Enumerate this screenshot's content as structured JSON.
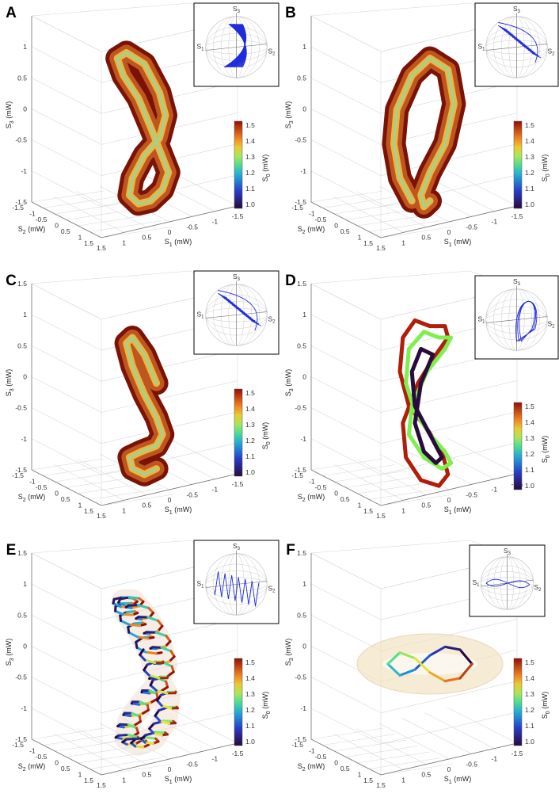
{
  "chart_data": [
    {
      "panel": "A",
      "type": "line",
      "render": "tube",
      "xlabel": "S",
      "xlabel_sub": "1",
      "xlabel_unit": " (mW)",
      "ylabel": "S",
      "ylabel_sub": "2",
      "ylabel_unit": " (mW)",
      "zlabel": "S",
      "zlabel_sub": "3",
      "zlabel_unit": " (mW)",
      "x_ticks": [
        "1.5",
        "1",
        "0.5",
        "0",
        "-0.5",
        "-1",
        "-1.5"
      ],
      "y_ticks": [
        "-1.5",
        "-1",
        "-0.5",
        "0",
        "0.5",
        "1",
        "1.5"
      ],
      "z_ticks": [
        "1.5",
        "1",
        "0.5",
        "0",
        "-0.5",
        "-1",
        "-1.5"
      ],
      "z_visible_ticks": [
        "1",
        "0.5",
        "0",
        "-0.5",
        "-1",
        "-1.5"
      ],
      "colorbar": {
        "label": "S",
        "label_sub": "0",
        "label_unit": " (mW)",
        "ticks": [
          "1.5",
          "1.4",
          "1.3",
          "1.2",
          "1.1",
          "1.0"
        ]
      },
      "inset": {
        "labels": [
          "S",
          "S",
          "S"
        ],
        "subs": [
          "3",
          "1",
          "2"
        ],
        "pattern": "band"
      },
      "series": [
        {
          "x": [
            0,
            0.4,
            0.9,
            1.1,
            0.8,
            0.2,
            -0.3,
            -0.5,
            -0.3,
            0.2,
            0.6,
            0.7,
            0.4,
            0.0,
            -0.4,
            -0.6,
            -0.3,
            0
          ],
          "y": [
            0,
            0,
            0,
            0,
            0,
            0,
            0,
            0,
            0,
            0,
            0,
            0,
            0,
            0,
            0,
            0,
            0,
            0
          ],
          "z": [
            0,
            0.5,
            0.9,
            1.2,
            1.3,
            1.1,
            0.6,
            0.2,
            -0.2,
            -0.5,
            -0.9,
            -1.2,
            -1.35,
            -1.3,
            -1.1,
            -0.8,
            -0.4,
            0
          ]
        }
      ]
    },
    {
      "panel": "B",
      "type": "line",
      "render": "tube",
      "xlabel": "S",
      "xlabel_sub": "1",
      "xlabel_unit": " (mW)",
      "ylabel": "S",
      "ylabel_sub": "2",
      "ylabel_unit": " (mW)",
      "zlabel": "S",
      "zlabel_sub": "3",
      "zlabel_unit": " (mW)",
      "x_ticks": [
        "1.5",
        "1",
        "0.5",
        "0",
        "-0.5",
        "-1",
        "-1.5"
      ],
      "y_ticks": [
        "-1.5",
        "-1",
        "-0.5",
        "0",
        "0.5",
        "1",
        "1.5"
      ],
      "z_ticks": [
        "1.5",
        "1",
        "0.5",
        "0",
        "-0.5",
        "-1",
        "-1.5"
      ],
      "z_visible_ticks": [
        "1",
        "0.5",
        "0",
        "-0.5",
        "-1",
        "-1.5"
      ],
      "colorbar": {
        "label": "S",
        "label_sub": "0",
        "label_unit": " (mW)",
        "ticks": [
          "1.5",
          "1.4",
          "1.3",
          "1.2",
          "1.1",
          "1.0"
        ]
      },
      "inset": {
        "labels": [
          "S",
          "S",
          "S"
        ],
        "subs": [
          "3",
          "1",
          "2"
        ],
        "pattern": "stripes"
      },
      "series": [
        {
          "x": [
            0.6,
            1.0,
            1.2,
            1.1,
            0.6,
            0.0,
            -0.6,
            -0.8,
            -0.5,
            0.0,
            0.3,
            0.2,
            0.0
          ],
          "y": [
            0,
            0,
            0,
            0,
            0,
            0,
            0,
            0,
            0,
            0,
            0,
            0,
            0
          ],
          "z": [
            -1.3,
            -0.9,
            -0.3,
            0.3,
            0.9,
            1.2,
            1.0,
            0.4,
            -0.3,
            -0.8,
            -1.2,
            -1.4,
            -1.3
          ]
        }
      ]
    },
    {
      "panel": "C",
      "type": "line",
      "render": "tube",
      "xlabel": "S",
      "xlabel_sub": "1",
      "xlabel_unit": " (mW)",
      "ylabel": "S",
      "ylabel_sub": "2",
      "ylabel_unit": " (mW)",
      "zlabel": "S",
      "zlabel_sub": "3",
      "zlabel_unit": " (mW)",
      "x_ticks": [
        "1.5",
        "1",
        "0.5",
        "0",
        "-0.5",
        "-1",
        "-1.5"
      ],
      "y_ticks": [
        "-1.5",
        "-1",
        "-0.5",
        "0",
        "0.5",
        "1",
        "1.5"
      ],
      "z_ticks": [
        "1.5",
        "1",
        "0.5",
        "0",
        "-0.5",
        "-1",
        "-1.5"
      ],
      "z_visible_ticks": [
        "1.5",
        "1",
        "0.5",
        "0",
        "-0.5",
        "-1",
        "-1.5"
      ],
      "colorbar": {
        "label": "S",
        "label_sub": "0",
        "label_unit": " (mW)",
        "ticks": [
          "1.5",
          "1.4",
          "1.3",
          "1.2",
          "1.1",
          "1.0"
        ]
      },
      "inset": {
        "labels": [
          "S",
          "S",
          "S"
        ],
        "subs": [
          "3",
          "1",
          "2"
        ],
        "pattern": "stripes"
      },
      "series": [
        {
          "x": [
            -0.2,
            0.2,
            0.6,
            0.8,
            0.6,
            0.2,
            -0.2,
            -0.4,
            -0.2,
            0.3,
            0.7,
            0.6,
            0.2,
            -0.2
          ],
          "y": [
            0,
            0,
            0,
            0,
            0,
            0,
            0,
            0,
            0,
            0,
            0,
            0,
            0,
            0
          ],
          "z": [
            0.2,
            0.7,
            1.0,
            0.9,
            0.5,
            0.0,
            -0.4,
            -0.7,
            -0.9,
            -1.0,
            -1.1,
            -1.3,
            -1.4,
            -1.3
          ]
        }
      ]
    },
    {
      "panel": "D",
      "type": "line",
      "render": "lines",
      "xlabel": "S",
      "xlabel_sub": "1",
      "xlabel_unit": " (mW)",
      "ylabel": "S",
      "ylabel_sub": "2",
      "ylabel_unit": " (mW)",
      "zlabel": "S",
      "zlabel_sub": "3",
      "zlabel_unit": " (mW)",
      "x_ticks": [
        "1.5",
        "1",
        "0.5",
        "0",
        "-0.5",
        "-1",
        "-1.5"
      ],
      "y_ticks": [
        "-1.5",
        "-1",
        "-0.5",
        "0",
        "0.5",
        "1",
        "1.5"
      ],
      "z_ticks": [
        "1.5",
        "1",
        "0.5",
        "0",
        "-0.5",
        "-1",
        "-1.5"
      ],
      "z_visible_ticks": [
        "1.5",
        "1",
        "0.5",
        "0",
        "-0.5",
        "-1",
        "-1.5"
      ],
      "colorbar": {
        "label": "S",
        "label_sub": "0",
        "label_unit": " (mW)",
        "ticks": [
          "1.5",
          "1.4",
          "1.3",
          "1.2",
          "1.1",
          "1.0"
        ]
      },
      "inset": {
        "labels": [
          "S",
          "S",
          "S"
        ],
        "subs": [
          "3",
          "1",
          "2"
        ],
        "pattern": "loops"
      },
      "series": [
        {
          "color": "#b01e0a",
          "s0": 1.5,
          "x": [
            0,
            0.5,
            0.9,
            1.0,
            0.7,
            0.1,
            -0.4,
            -0.6,
            -0.3,
            0.3,
            0.8,
            0.9,
            0.4,
            -0.2,
            -0.6,
            -0.5,
            0
          ],
          "z": [
            1.2,
            1.3,
            1.0,
            0.4,
            -0.2,
            -0.6,
            -1.0,
            -1.4,
            -1.6,
            -1.5,
            -1.1,
            -0.5,
            0.2,
            0.7,
            1.0,
            1.2,
            1.2
          ]
        },
        {
          "color": "#7fef4e",
          "s0": 1.25,
          "x": [
            -0.3,
            0.2,
            0.7,
            0.8,
            0.5,
            0.0,
            -0.5,
            -0.7,
            -0.4,
            0.2,
            0.7,
            0.6,
            0.1,
            -0.5,
            -0.7,
            -0.3
          ],
          "z": [
            1.0,
            1.1,
            0.8,
            0.2,
            -0.3,
            -0.7,
            -1.0,
            -1.2,
            -1.3,
            -1.1,
            -0.7,
            -0.2,
            0.4,
            0.8,
            1.0,
            1.0
          ]
        },
        {
          "color": "#2a0b3e",
          "s0": 0.95,
          "x": [
            -0.1,
            0.3,
            0.6,
            0.5,
            0.1,
            -0.2,
            -0.4,
            -0.2,
            0.2,
            0.5,
            0.3,
            -0.1
          ],
          "z": [
            0.7,
            0.8,
            0.4,
            -0.2,
            -0.6,
            -0.9,
            -1.1,
            -1.2,
            -1.0,
            -0.5,
            0.2,
            0.7
          ]
        }
      ]
    },
    {
      "panel": "E",
      "type": "line",
      "render": "helix",
      "xlabel": "S",
      "xlabel_sub": "1",
      "xlabel_unit": " (mW)",
      "ylabel": "S",
      "ylabel_sub": "2",
      "ylabel_unit": " (mW)",
      "zlabel": "S",
      "zlabel_sub": "3",
      "zlabel_unit": " (mW)",
      "x_ticks": [
        "1.5",
        "1",
        "0.5",
        "0",
        "-0.5",
        "-1",
        "-1.5"
      ],
      "y_ticks": [
        "-1.5",
        "-1",
        "-0.5",
        "0",
        "0.5",
        "1",
        "1.5"
      ],
      "z_ticks": [
        "1.5",
        "1",
        "0.5",
        "0",
        "-0.5",
        "-1",
        "-1.5"
      ],
      "z_visible_ticks": [
        "1.5",
        "1",
        "0.5",
        "0",
        "-0.5",
        "-1",
        "-1.5"
      ],
      "colorbar": {
        "label": "S",
        "label_sub": "0",
        "label_unit": " (mW)",
        "ticks": [
          "1.5",
          "1.4",
          "1.3",
          "1.2",
          "1.1",
          "1.0"
        ]
      },
      "inset": {
        "labels": [
          "S",
          "S",
          "S"
        ],
        "subs": [
          "3",
          "1",
          "2"
        ],
        "pattern": "zigzag"
      },
      "series": [
        {
          "x": [
            0,
            0.4,
            0.8,
            0.9,
            0.6,
            0.1,
            -0.3,
            -0.5,
            -0.2,
            0.3,
            0.7,
            0.8,
            0.4,
            -0.1,
            -0.5,
            -0.6,
            -0.2,
            0
          ],
          "z": [
            0.2,
            0.6,
            0.9,
            1.1,
            1.1,
            0.8,
            0.4,
            0.0,
            -0.4,
            -0.7,
            -1.0,
            -1.3,
            -1.4,
            -1.3,
            -1.0,
            -0.6,
            -0.2,
            0.2
          ]
        }
      ]
    },
    {
      "panel": "F",
      "type": "line",
      "render": "flat",
      "xlabel": "S",
      "xlabel_sub": "1",
      "xlabel_unit": " (mW)",
      "ylabel": "S",
      "ylabel_sub": "2",
      "ylabel_unit": " (mW)",
      "zlabel": "S",
      "zlabel_sub": "3",
      "zlabel_unit": " (mW)",
      "x_ticks": [
        "1.5",
        "1",
        "0.5",
        "0",
        "-0.5",
        "-1",
        "-1.5"
      ],
      "y_ticks": [
        "-1.5",
        "-1",
        "-0.5",
        "0",
        "0.5",
        "1",
        "1.5"
      ],
      "z_ticks": [
        "1.5",
        "1",
        "0.5",
        "0",
        "-0.5",
        "-1",
        "-1.5"
      ],
      "z_visible_ticks": [
        "1.5",
        "1",
        "0.5",
        "0",
        "-0.5",
        "-1",
        "-1.5"
      ],
      "colorbar": {
        "label": "S",
        "label_sub": "0",
        "label_unit": " (mW)",
        "ticks": [
          "1.5",
          "1.4",
          "1.3",
          "1.2",
          "1.1",
          "1.0"
        ]
      },
      "inset": {
        "labels": [
          "S",
          "S",
          "S"
        ],
        "subs": [
          "3",
          "1",
          "2"
        ],
        "pattern": "lissajous"
      },
      "series": [
        {
          "x": [
            -1.4,
            -1.0,
            -0.5,
            0.0,
            0.5,
            1.0,
            1.4,
            1.0,
            0.5,
            0.0,
            -0.5,
            -1.0,
            -1.4
          ],
          "z": [
            0.0,
            0.25,
            0.3,
            0.15,
            -0.1,
            -0.2,
            0.0,
            0.2,
            0.1,
            -0.15,
            -0.3,
            -0.25,
            0.0
          ]
        }
      ]
    }
  ]
}
